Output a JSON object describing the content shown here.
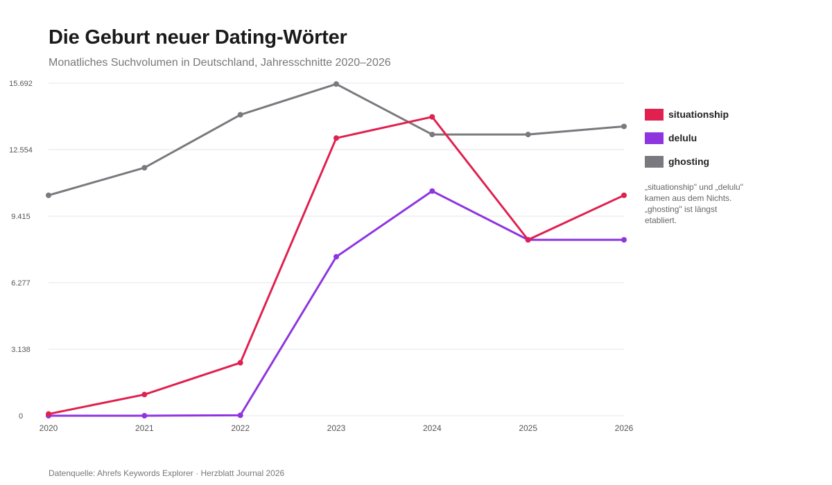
{
  "header": {
    "title": "Die Geburt neuer Dating-Wörter",
    "subtitle": "Monatliches Suchvolumen in Deutschland, Jahresschnitte 2020–2026"
  },
  "annotation": "„situationship\" und „delulu\" kamen aus dem Nichts. „ghosting\" ist längst etabliert.",
  "source": "Datenquelle: Ahrefs Keywords Explorer · Herzblatt Journal 2026",
  "chart_data": {
    "type": "line",
    "title": "Die Geburt neuer Dating-Wörter",
    "subtitle": "Monatliches Suchvolumen in Deutschland, Jahresschnitte 2020–2026",
    "xlabel": "",
    "ylabel": "",
    "categories": [
      "2020",
      "2021",
      "2022",
      "2023",
      "2024",
      "2025",
      "2026"
    ],
    "ylim": [
      0,
      15692
    ],
    "yticks": [
      0,
      3138,
      6277,
      9415,
      12554,
      15692
    ],
    "ytick_labels": [
      "0",
      "3.138",
      "6.277",
      "9.415",
      "12.554",
      "15.692"
    ],
    "grid": true,
    "legend_position": "right",
    "series": [
      {
        "name": "situationship",
        "color": "#e0204f",
        "values": [
          80,
          1000,
          2500,
          13100,
          14100,
          8300,
          10400
        ]
      },
      {
        "name": "delulu",
        "color": "#8e35e0",
        "values": [
          0,
          0,
          20,
          7500,
          10600,
          8300,
          8300
        ]
      },
      {
        "name": "ghosting",
        "color": "#7a797e",
        "values": [
          10400,
          11700,
          14200,
          15650,
          13270,
          13270,
          13650
        ]
      }
    ]
  }
}
